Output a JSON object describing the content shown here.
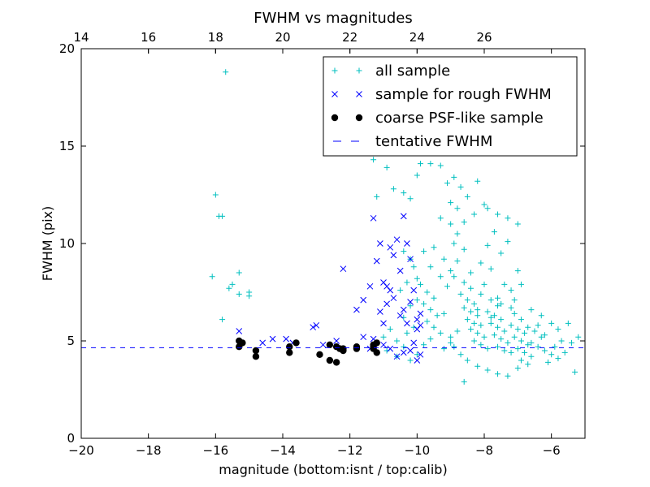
{
  "chart_data": {
    "type": "scatter",
    "title": "FWHM vs magnitudes",
    "xlabel": "magnitude (bottom:isnt / top:calib)",
    "ylabel": "FWHM (pix)",
    "xlim": [
      -20,
      -5
    ],
    "ylim": [
      0,
      20
    ],
    "x_ticks": [
      -20,
      -18,
      -16,
      -14,
      -12,
      -10,
      -8,
      -6
    ],
    "y_ticks": [
      0,
      5,
      10,
      15,
      20
    ],
    "x_tick_labels": [
      "−20",
      "−18",
      "−16",
      "−14",
      "−12",
      "−10",
      "−8",
      "−6"
    ],
    "y_tick_labels": [
      "0",
      "5",
      "10",
      "15",
      "20"
    ],
    "top_axis": {
      "ticks": [
        14,
        16,
        18,
        20,
        22,
        24,
        26
      ],
      "tick_labels": [
        "14",
        "16",
        "18",
        "20",
        "22",
        "24",
        "26"
      ],
      "offset": 34
    },
    "legend_position": "top-right",
    "grid": false,
    "colors": {
      "all": "#00bfbf",
      "rough": "#0000ff",
      "psf": "#000000",
      "fwhm": "#0000ff"
    },
    "tentative_fwhm": 4.65,
    "series": [
      {
        "name": "all sample",
        "marker": "plus",
        "points": [
          [
            -15.7,
            18.8
          ],
          [
            -16.0,
            12.5
          ],
          [
            -15.9,
            11.4
          ],
          [
            -15.8,
            11.4
          ],
          [
            -16.1,
            8.3
          ],
          [
            -15.3,
            8.5
          ],
          [
            -15.5,
            7.9
          ],
          [
            -15.6,
            7.7
          ],
          [
            -15.3,
            7.4
          ],
          [
            -15.0,
            7.5
          ],
          [
            -15.0,
            7.3
          ],
          [
            -15.8,
            6.1
          ],
          [
            -11.2,
            12.4
          ],
          [
            -11.3,
            14.3
          ],
          [
            -10.9,
            13.9
          ],
          [
            -10.7,
            12.8
          ],
          [
            -10.4,
            12.6
          ],
          [
            -10.2,
            12.3
          ],
          [
            -10.0,
            13.5
          ],
          [
            -9.9,
            14.1
          ],
          [
            -9.6,
            14.1
          ],
          [
            -9.3,
            14.0
          ],
          [
            -9.1,
            13.1
          ],
          [
            -8.9,
            13.4
          ],
          [
            -8.7,
            12.9
          ],
          [
            -8.5,
            12.4
          ],
          [
            -8.2,
            13.2
          ],
          [
            -8.0,
            12.0
          ],
          [
            -8.3,
            11.5
          ],
          [
            -8.8,
            11.8
          ],
          [
            -9.0,
            12.1
          ],
          [
            -9.0,
            11.0
          ],
          [
            -9.3,
            11.3
          ],
          [
            -8.6,
            11.1
          ],
          [
            -8.8,
            10.5
          ],
          [
            -8.9,
            10.0
          ],
          [
            -8.6,
            9.7
          ],
          [
            -9.2,
            9.2
          ],
          [
            -9.5,
            9.8
          ],
          [
            -8.8,
            9.1
          ],
          [
            -9.0,
            8.6
          ],
          [
            -8.4,
            8.5
          ],
          [
            -9.3,
            8.3
          ],
          [
            -9.6,
            8.8
          ],
          [
            -9.8,
            9.6
          ],
          [
            -9.9,
            7.9
          ],
          [
            -10.0,
            8.2
          ],
          [
            -7.9,
            11.8
          ],
          [
            -7.6,
            11.5
          ],
          [
            -7.3,
            11.3
          ],
          [
            -7.0,
            11.0
          ],
          [
            -7.7,
            10.6
          ],
          [
            -7.3,
            10.1
          ],
          [
            -7.9,
            9.9
          ],
          [
            -7.5,
            9.5
          ],
          [
            -8.1,
            9.0
          ],
          [
            -7.8,
            8.7
          ],
          [
            -7.0,
            8.6
          ],
          [
            -6.9,
            7.9
          ],
          [
            -7.2,
            7.6
          ],
          [
            -7.6,
            7.2
          ],
          [
            -10.4,
            9.6
          ],
          [
            -10.2,
            9.2
          ],
          [
            -10.1,
            8.8
          ],
          [
            -10.3,
            8.0
          ],
          [
            -10.5,
            7.6
          ],
          [
            -10.0,
            7.1
          ],
          [
            -10.2,
            6.8
          ],
          [
            -10.4,
            6.2
          ],
          [
            -10.1,
            5.7
          ],
          [
            -10.3,
            5.4
          ],
          [
            -10.6,
            5.0
          ],
          [
            -10.8,
            5.6
          ],
          [
            -11.0,
            5.2
          ],
          [
            -11.2,
            4.9
          ],
          [
            -10.9,
            4.5
          ],
          [
            -10.6,
            4.2
          ],
          [
            -10.4,
            4.7
          ],
          [
            -10.2,
            4.0
          ],
          [
            -10.0,
            4.3
          ],
          [
            -9.7,
            7.5
          ],
          [
            -9.5,
            7.2
          ],
          [
            -9.8,
            6.9
          ],
          [
            -9.6,
            6.6
          ],
          [
            -9.4,
            6.3
          ],
          [
            -9.7,
            6.0
          ],
          [
            -9.5,
            5.7
          ],
          [
            -9.3,
            5.4
          ],
          [
            -9.6,
            5.1
          ],
          [
            -9.8,
            4.8
          ],
          [
            -9.2,
            4.6
          ],
          [
            -9.0,
            4.9
          ],
          [
            -8.6,
            8.0
          ],
          [
            -8.4,
            7.7
          ],
          [
            -8.7,
            7.4
          ],
          [
            -8.5,
            7.1
          ],
          [
            -8.3,
            6.9
          ],
          [
            -8.6,
            6.7
          ],
          [
            -8.4,
            6.5
          ],
          [
            -8.2,
            6.3
          ],
          [
            -8.5,
            6.1
          ],
          [
            -8.3,
            5.9
          ],
          [
            -8.1,
            5.8
          ],
          [
            -8.4,
            5.6
          ],
          [
            -8.2,
            5.4
          ],
          [
            -8.0,
            5.2
          ],
          [
            -8.3,
            5.0
          ],
          [
            -8.1,
            4.8
          ],
          [
            -7.9,
            4.6
          ],
          [
            -7.8,
            7.1
          ],
          [
            -7.6,
            6.8
          ],
          [
            -7.9,
            6.5
          ],
          [
            -7.7,
            6.3
          ],
          [
            -7.5,
            6.1
          ],
          [
            -7.8,
            5.9
          ],
          [
            -7.6,
            5.7
          ],
          [
            -7.4,
            5.5
          ],
          [
            -7.7,
            5.3
          ],
          [
            -7.5,
            5.1
          ],
          [
            -7.3,
            4.9
          ],
          [
            -7.6,
            4.7
          ],
          [
            -7.4,
            4.5
          ],
          [
            -7.2,
            4.4
          ],
          [
            -7.1,
            6.4
          ],
          [
            -6.9,
            6.1
          ],
          [
            -7.2,
            5.8
          ],
          [
            -7.0,
            5.6
          ],
          [
            -6.8,
            5.4
          ],
          [
            -7.1,
            5.2
          ],
          [
            -6.9,
            5.0
          ],
          [
            -6.7,
            4.8
          ],
          [
            -7.0,
            4.6
          ],
          [
            -6.8,
            4.4
          ],
          [
            -6.6,
            4.2
          ],
          [
            -6.9,
            4.0
          ],
          [
            -6.7,
            3.8
          ],
          [
            -6.5,
            5.5
          ],
          [
            -6.3,
            5.2
          ],
          [
            -6.6,
            4.9
          ],
          [
            -6.4,
            4.7
          ],
          [
            -6.2,
            4.5
          ],
          [
            -6.0,
            4.3
          ],
          [
            -5.8,
            4.1
          ],
          [
            -6.1,
            3.9
          ],
          [
            -5.9,
            4.7
          ],
          [
            -5.6,
            4.4
          ],
          [
            -5.4,
            4.9
          ],
          [
            -5.2,
            5.2
          ],
          [
            -5.3,
            3.4
          ],
          [
            -5.8,
            5.6
          ],
          [
            -5.5,
            5.9
          ],
          [
            -8.8,
            5.5
          ],
          [
            -9.0,
            5.2
          ],
          [
            -8.9,
            4.7
          ],
          [
            -8.7,
            4.3
          ],
          [
            -8.5,
            4.0
          ],
          [
            -8.2,
            3.7
          ],
          [
            -7.9,
            3.5
          ],
          [
            -7.6,
            3.3
          ],
          [
            -7.3,
            3.2
          ],
          [
            -7.0,
            3.6
          ],
          [
            -8.6,
            2.9
          ],
          [
            -9.1,
            7.8
          ],
          [
            -8.9,
            8.3
          ],
          [
            -9.2,
            6.4
          ],
          [
            -8.0,
            7.9
          ],
          [
            -8.1,
            7.4
          ],
          [
            -7.4,
            7.9
          ],
          [
            -7.1,
            7.1
          ],
          [
            -6.6,
            6.6
          ],
          [
            -6.3,
            6.3
          ],
          [
            -6.0,
            5.9
          ],
          [
            -7.5,
            6.9
          ],
          [
            -8.2,
            6.6
          ],
          [
            -7.2,
            6.7
          ],
          [
            -6.4,
            5.8
          ],
          [
            -5.7,
            5.0
          ],
          [
            -6.2,
            5.3
          ],
          [
            -6.7,
            5.7
          ],
          [
            -7.8,
            6.2
          ]
        ]
      },
      {
        "name": "sample for rough FWHM",
        "marker": "x",
        "points": [
          [
            -15.3,
            5.5
          ],
          [
            -14.3,
            5.1
          ],
          [
            -13.9,
            5.1
          ],
          [
            -13.1,
            5.7
          ],
          [
            -13.0,
            5.8
          ],
          [
            -12.2,
            8.7
          ],
          [
            -11.8,
            6.6
          ],
          [
            -11.6,
            7.1
          ],
          [
            -11.4,
            7.8
          ],
          [
            -11.3,
            11.3
          ],
          [
            -11.2,
            9.1
          ],
          [
            -11.1,
            10.0
          ],
          [
            -11.0,
            8.0
          ],
          [
            -10.9,
            7.8
          ],
          [
            -10.8,
            9.8
          ],
          [
            -10.7,
            9.4
          ],
          [
            -10.6,
            10.2
          ],
          [
            -10.5,
            8.6
          ],
          [
            -10.4,
            11.4
          ],
          [
            -10.3,
            10.0
          ],
          [
            -10.2,
            9.2
          ],
          [
            -11.1,
            6.5
          ],
          [
            -11.0,
            5.9
          ],
          [
            -10.9,
            6.9
          ],
          [
            -10.8,
            7.6
          ],
          [
            -10.7,
            7.2
          ],
          [
            -10.5,
            6.3
          ],
          [
            -10.4,
            6.6
          ],
          [
            -10.3,
            5.9
          ],
          [
            -10.2,
            7.0
          ],
          [
            -10.1,
            7.6
          ],
          [
            -10.0,
            6.1
          ],
          [
            -9.9,
            6.4
          ],
          [
            -10.0,
            5.6
          ],
          [
            -9.9,
            5.8
          ],
          [
            -10.1,
            4.9
          ],
          [
            -11.6,
            5.2
          ],
          [
            -11.3,
            5.1
          ],
          [
            -11.0,
            4.8
          ],
          [
            -10.8,
            4.6
          ],
          [
            -10.6,
            4.2
          ],
          [
            -10.4,
            4.4
          ],
          [
            -10.2,
            4.5
          ],
          [
            -10.0,
            4.0
          ],
          [
            -9.9,
            4.3
          ],
          [
            -11.4,
            4.6
          ],
          [
            -12.8,
            4.8
          ],
          [
            -12.4,
            5.0
          ],
          [
            -13.7,
            4.9
          ],
          [
            -14.6,
            4.9
          ],
          [
            -15.3,
            4.8
          ]
        ]
      },
      {
        "name": "coarse PSF-like sample",
        "marker": "dot",
        "points": [
          [
            -15.3,
            4.7
          ],
          [
            -15.3,
            5.0
          ],
          [
            -15.2,
            4.9
          ],
          [
            -14.8,
            4.5
          ],
          [
            -14.8,
            4.2
          ],
          [
            -13.8,
            4.7
          ],
          [
            -13.8,
            4.4
          ],
          [
            -13.6,
            4.9
          ],
          [
            -12.9,
            4.3
          ],
          [
            -12.6,
            4.0
          ],
          [
            -12.6,
            4.8
          ],
          [
            -12.4,
            4.7
          ],
          [
            -12.4,
            3.9
          ],
          [
            -12.3,
            4.6
          ],
          [
            -12.2,
            4.6
          ],
          [
            -12.2,
            4.5
          ],
          [
            -11.8,
            4.6
          ],
          [
            -11.8,
            4.7
          ],
          [
            -11.3,
            4.6
          ],
          [
            -11.3,
            4.8
          ],
          [
            -11.2,
            4.9
          ],
          [
            -11.2,
            4.4
          ],
          [
            -11.3,
            4.7
          ]
        ]
      }
    ],
    "legend": [
      {
        "label": "all sample",
        "marker": "plus"
      },
      {
        "label": "sample for rough FWHM",
        "marker": "x"
      },
      {
        "label": "coarse PSF-like sample",
        "marker": "dot"
      },
      {
        "label": "tentative FWHM",
        "marker": "dash"
      }
    ]
  }
}
